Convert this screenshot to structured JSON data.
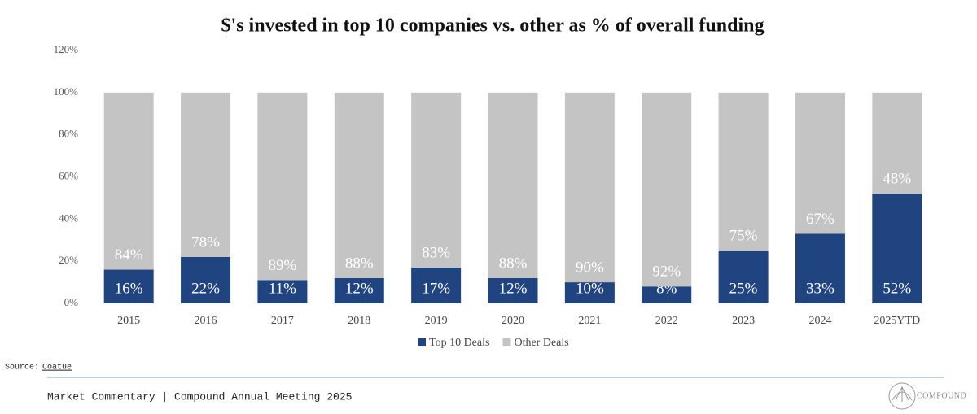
{
  "chart_data": {
    "type": "stacked_bar",
    "title": "$'s invested in top 10 companies vs. other as % of overall funding",
    "categories": [
      "2015",
      "2016",
      "2017",
      "2018",
      "2019",
      "2020",
      "2021",
      "2022",
      "2023",
      "2024",
      "2025YTD"
    ],
    "series": [
      {
        "name": "Top 10 Deals",
        "color": "#1f4480",
        "values": [
          16,
          22,
          11,
          12,
          17,
          12,
          10,
          8,
          25,
          33,
          52
        ],
        "value_labels": [
          "16%",
          "22%",
          "11%",
          "12%",
          "17%",
          "12%",
          "10%",
          "8%",
          "25%",
          "33%",
          "52%"
        ]
      },
      {
        "name": "Other Deals",
        "color": "#c4c4c4",
        "values": [
          84,
          78,
          89,
          88,
          83,
          88,
          90,
          92,
          75,
          67,
          48
        ],
        "value_labels": [
          "84%",
          "78%",
          "89%",
          "88%",
          "83%",
          "88%",
          "90%",
          "92%",
          "75%",
          "67%",
          "48%"
        ]
      }
    ],
    "ylim": [
      0,
      120
    ],
    "yticks": [
      {
        "value": 0,
        "label": "0%"
      },
      {
        "value": 20,
        "label": "20%"
      },
      {
        "value": 40,
        "label": "40%"
      },
      {
        "value": 60,
        "label": "60%"
      },
      {
        "value": 80,
        "label": "80%"
      },
      {
        "value": 100,
        "label": "100%"
      },
      {
        "value": 120,
        "label": "120%"
      }
    ],
    "grid": false,
    "legend": "bottom"
  },
  "source": {
    "label": "Source:",
    "link": "Coatue"
  },
  "footer": {
    "text": "Market Commentary | Compound Annual Meeting 2025",
    "logo": "COMPOUND"
  }
}
